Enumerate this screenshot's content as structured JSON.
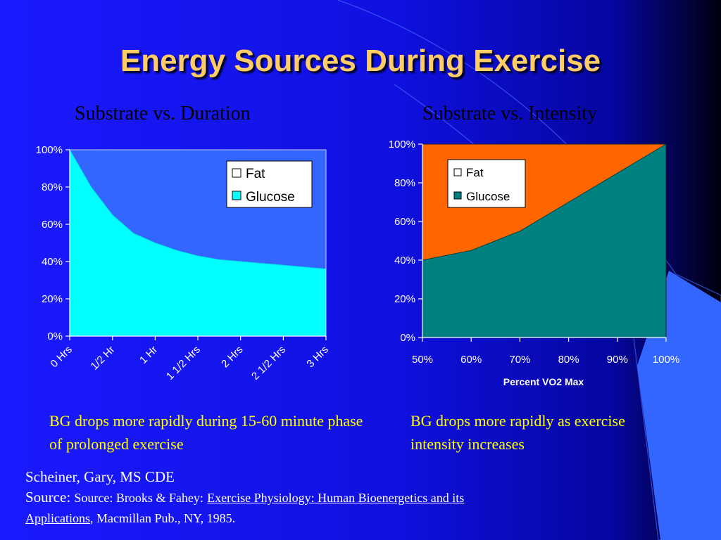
{
  "slide": {
    "title": "Energy Sources During Exercise",
    "colors": {
      "background": "#1414F0",
      "title": "#FFCC66",
      "notes": "#FFFF00"
    }
  },
  "chart_data": [
    {
      "type": "area",
      "title": "Substrate vs. Duration",
      "categories": [
        "0 Hrs",
        "1/2 Hr",
        "1 Hr",
        "1 1/2 Hrs",
        "2 Hrs",
        "2 1/2 Hrs",
        "3 Hrs"
      ],
      "x": [
        0,
        0.5,
        1,
        1.5,
        2,
        2.5,
        3
      ],
      "xlabel": "",
      "ylabel": "",
      "ylim": [
        0,
        100
      ],
      "yticks": [
        "0%",
        "20%",
        "40%",
        "60%",
        "80%",
        "100%"
      ],
      "stacked": true,
      "legend": "top-right",
      "series": [
        {
          "name": "Fat",
          "color": "#3366FF",
          "x": [
            0,
            0.25,
            0.5,
            0.75,
            1,
            1.25,
            1.5,
            1.75,
            2,
            2.25,
            2.5,
            2.75,
            3
          ],
          "values": [
            0,
            20,
            35,
            45,
            50,
            54,
            57,
            59,
            60,
            61,
            62,
            63,
            64
          ]
        },
        {
          "name": "Glucose",
          "color": "#00FFFF",
          "x": [
            0,
            0.25,
            0.5,
            0.75,
            1,
            1.25,
            1.5,
            1.75,
            2,
            2.25,
            2.5,
            2.75,
            3
          ],
          "values": [
            100,
            80,
            65,
            55,
            50,
            46,
            43,
            41,
            40,
            39,
            38,
            37,
            36
          ]
        }
      ]
    },
    {
      "type": "area",
      "title": "Substrate vs. Intensity",
      "categories": [
        "50%",
        "60%",
        "70%",
        "80%",
        "90%",
        "100%"
      ],
      "x": [
        50,
        60,
        70,
        80,
        90,
        100
      ],
      "xlabel": "Percent VO2 Max",
      "ylabel": "",
      "ylim": [
        0,
        100
      ],
      "yticks": [
        "0%",
        "20%",
        "40%",
        "60%",
        "80%",
        "100%"
      ],
      "stacked": true,
      "legend": "top-left",
      "series": [
        {
          "name": "Fat",
          "color": "#FF6600",
          "values": [
            60,
            55,
            45,
            30,
            15,
            0
          ]
        },
        {
          "name": "Glucose",
          "color": "#008080",
          "values": [
            40,
            45,
            55,
            70,
            85,
            100
          ]
        }
      ]
    }
  ],
  "notes": {
    "left": "BG drops more rapidly during 15-60 minute phase of prolonged exercise",
    "right": "BG drops more rapidly as exercise intensity increases"
  },
  "credit": {
    "author": "Scheiner, Gary, MS CDE",
    "source_label": "Source:",
    "source_prefix": "Source: Brooks & Fahey:",
    "book_title_1": "Exercise Physiology: Human Bioenergetics and its",
    "book_title_2": "Applications",
    "publisher": ", Macmillan Pub., NY, 1985."
  }
}
